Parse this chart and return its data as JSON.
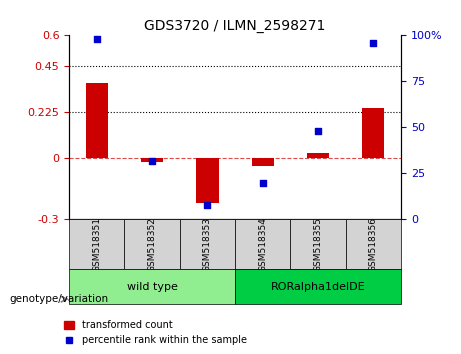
{
  "title": "GDS3720 / ILMN_2598271",
  "samples": [
    "GSM518351",
    "GSM518352",
    "GSM518353",
    "GSM518354",
    "GSM518355",
    "GSM518356"
  ],
  "bar_values": [
    0.365,
    -0.02,
    -0.22,
    -0.04,
    0.025,
    0.245
  ],
  "dot_values": [
    98,
    32,
    8,
    20,
    48,
    96
  ],
  "left_ylim": [
    -0.3,
    0.6
  ],
  "right_ylim": [
    0,
    100
  ],
  "left_yticks": [
    -0.3,
    0,
    0.225,
    0.45,
    0.6
  ],
  "right_yticks": [
    0,
    25,
    50,
    75,
    100
  ],
  "left_ytick_labels": [
    "-0.3",
    "0",
    "0.225",
    "0.45",
    "0.6"
  ],
  "right_ytick_labels": [
    "0",
    "25",
    "50",
    "75",
    "100%"
  ],
  "hlines": [
    0.225,
    0.45
  ],
  "hline_zero": 0,
  "bar_color": "#cc0000",
  "dot_color": "#0000cc",
  "bar_width": 0.4,
  "groups": [
    {
      "label": "wild type",
      "samples": [
        0,
        1,
        2
      ],
      "color": "#90ee90"
    },
    {
      "label": "RORalpha1delDE",
      "samples": [
        3,
        4,
        5
      ],
      "color": "#00cc44"
    }
  ],
  "group_label": "genotype/variation",
  "legend_bar_label": "transformed count",
  "legend_dot_label": "percentile rank within the sample",
  "background_color": "#ffffff",
  "plot_bg_color": "#ffffff"
}
